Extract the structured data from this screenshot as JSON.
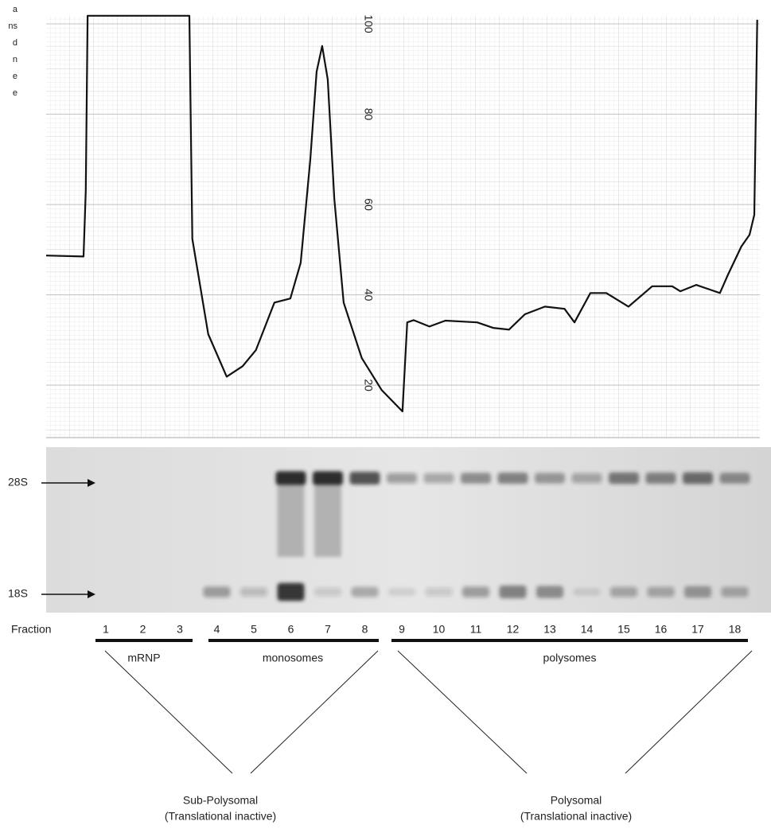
{
  "fragments": [
    "a",
    "ns",
    "d",
    "n",
    "e",
    "e"
  ],
  "chart_data": {
    "type": "line",
    "x": [
      -0.61,
      0.4,
      0.46,
      0.51,
      3.26,
      3.34,
      3.77,
      4.27,
      4.7,
      5.06,
      5.56,
      5.99,
      6.27,
      6.53,
      6.7,
      6.85,
      7.0,
      7.18,
      7.43,
      7.92,
      8.46,
      9.02,
      9.15,
      9.32,
      9.75,
      10.18,
      11.04,
      11.47,
      11.9,
      12.33,
      12.87,
      13.4,
      13.67,
      14.1,
      14.53,
      15.13,
      15.77,
      16.31,
      16.53,
      16.96,
      17.6,
      17.82,
      18.18,
      18.4,
      18.53,
      18.61
    ],
    "values": [
      48.7,
      48.5,
      63,
      101.8,
      101.8,
      52.4,
      31.3,
      21.9,
      24.2,
      27.8,
      38.3,
      39.2,
      47.1,
      70,
      89.4,
      95.1,
      87.7,
      61.2,
      38.3,
      26,
      18.9,
      14.2,
      33.9,
      34.4,
      33,
      34.3,
      33.9,
      32.7,
      32.3,
      35.7,
      37.4,
      36.9,
      33.9,
      40.4,
      40.4,
      37.4,
      41.9,
      41.9,
      40.8,
      42.2,
      40.4,
      44.5,
      50.7,
      53.3,
      57.7,
      100.9
    ],
    "color": "#111111",
    "xlim": [
      -0.61,
      18.68
    ],
    "ylim": [
      8.4,
      102
    ],
    "yticks": [
      20,
      40,
      60,
      80,
      100
    ],
    "grid": true
  },
  "gel": {
    "markers": [
      "28S",
      "18S"
    ],
    "fraction_label": "Fraction",
    "fractions": [
      1,
      2,
      3,
      4,
      5,
      6,
      7,
      8,
      9,
      10,
      11,
      12,
      13,
      14,
      15,
      16,
      17,
      18
    ]
  },
  "groups": [
    "mRNP",
    "monosomes",
    "polysomes"
  ],
  "summary": [
    {
      "title": "Sub-Polysomal",
      "subtitle": "(Translational inactive)"
    },
    {
      "title": "Polysomal",
      "subtitle": "(Translational inactive)"
    }
  ]
}
